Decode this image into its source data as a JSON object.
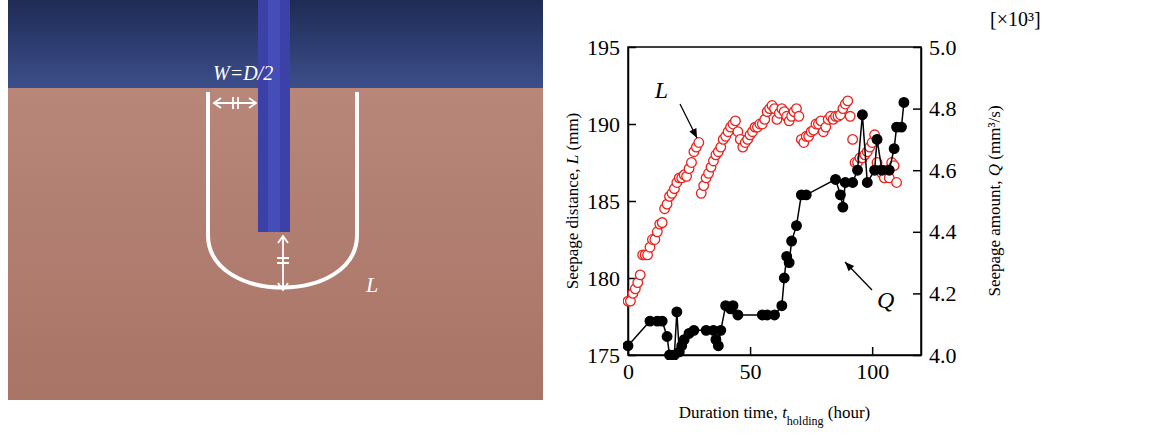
{
  "chart_data": {
    "type": "line",
    "xlabel_parts": [
      "Duration time, ",
      "t",
      "holding",
      " (hour)"
    ],
    "ylabel_parts": [
      "Seepage distance, ",
      "L",
      " (mm)"
    ],
    "y2label_parts": [
      "Seepage amount, ",
      "Q",
      " (mm³/s)"
    ],
    "y2_multiplier": "[×10³]",
    "xlim": [
      0,
      120
    ],
    "xticks": [
      0,
      50,
      100
    ],
    "ylim": [
      175,
      195
    ],
    "yticks": [
      175,
      180,
      185,
      190,
      195
    ],
    "y2lim": [
      4,
      5
    ],
    "y2ticks": [
      {
        "value": 4,
        "label": "4.0"
      },
      4.2,
      4.4,
      4.6,
      4.8,
      {
        "value": 5,
        "label": "5.0"
      }
    ],
    "series": [
      {
        "name": "L",
        "type": "scatter",
        "marker": "circle-open",
        "line_style": "none",
        "color": "#e8231e",
        "x": [
          0,
          1,
          2,
          3,
          4,
          5,
          6,
          7,
          8,
          9,
          10,
          11,
          12,
          13,
          14,
          15,
          16,
          17,
          18,
          19,
          20,
          21,
          22,
          23,
          24,
          25,
          26,
          27,
          28,
          29,
          30,
          31,
          32,
          33,
          34,
          35,
          36,
          37,
          38,
          39,
          40,
          41,
          42,
          43,
          44,
          45,
          46,
          47,
          48,
          49,
          50,
          51,
          52,
          53,
          54,
          55,
          56,
          57,
          58,
          59,
          60,
          61,
          62,
          63,
          64,
          65,
          66,
          67,
          68,
          69,
          70,
          71,
          72,
          73,
          74,
          75,
          76,
          77,
          78,
          79,
          80,
          81,
          82,
          83,
          84,
          85,
          86,
          87,
          88,
          89,
          90,
          91,
          92,
          93,
          94,
          95,
          96,
          97,
          98,
          99,
          100,
          101,
          102,
          103,
          104,
          105,
          106,
          107,
          108,
          109,
          110
        ],
        "values": [
          178.5,
          178.5,
          179,
          179.3,
          179.7,
          180.2,
          181.5,
          181.5,
          181.5,
          182,
          182.5,
          182.5,
          183,
          183.5,
          183.6,
          184.5,
          184.8,
          185.3,
          185.5,
          185.8,
          186.2,
          186.5,
          186.5,
          186.7,
          186.6,
          187.1,
          187.5,
          188.2,
          188.5,
          188.8,
          185.5,
          186,
          186.5,
          186.8,
          187.2,
          187.6,
          188,
          188.2,
          188.5,
          189,
          189.2,
          189.5,
          189.8,
          190,
          190.2,
          189.5,
          189,
          188.5,
          188.8,
          189,
          189.3,
          189.5,
          189.8,
          189.8,
          190,
          190,
          190.3,
          190.8,
          191,
          191.2,
          191,
          190.3,
          190.7,
          191,
          190.8,
          190.5,
          190.2,
          190.5,
          190.8,
          191,
          190.5,
          189,
          188.8,
          189.2,
          189.2,
          189.5,
          189.6,
          190,
          190,
          190.2,
          189.5,
          189.8,
          190.3,
          190.5,
          190.3,
          190.5,
          190.5,
          190.6,
          191,
          191.3,
          191.5,
          190.5,
          189,
          187.5,
          187.5,
          187.8,
          187.8,
          188,
          188.2,
          188.5,
          188.8,
          189.3,
          187.5,
          187,
          186.8,
          186.5,
          187,
          186.5,
          187.5,
          187.3,
          186.2
        ]
      },
      {
        "name": "Q",
        "type": "line",
        "marker": "circle",
        "line_style": "solid",
        "color": "#000000",
        "axis": "y2",
        "x": [
          0,
          9,
          12,
          14,
          16,
          17,
          19,
          20,
          21,
          22,
          23,
          25,
          27,
          32,
          35,
          36,
          37,
          38,
          40,
          42,
          43,
          45,
          55,
          57,
          60,
          63,
          64,
          65,
          66,
          67,
          69,
          71,
          73,
          85,
          87,
          88,
          89,
          92,
          94,
          96,
          98,
          101,
          102,
          104,
          107,
          109,
          110,
          112,
          113
        ],
        "values": [
          4.03,
          4.11,
          4.11,
          4.11,
          4.06,
          4.0,
          4.0,
          4.14,
          4.01,
          4.03,
          4.05,
          4.07,
          4.08,
          4.08,
          4.08,
          4.05,
          4.03,
          4.08,
          4.16,
          4.15,
          4.16,
          4.13,
          4.13,
          4.13,
          4.13,
          4.16,
          4.25,
          4.32,
          4.3,
          4.37,
          4.42,
          4.52,
          4.52,
          4.57,
          4.52,
          4.48,
          4.56,
          4.56,
          4.6,
          4.78,
          4.56,
          4.6,
          4.7,
          4.6,
          4.6,
          4.67,
          4.74,
          4.74,
          4.82
        ]
      }
    ]
  },
  "diagram": {
    "width_label": "W=D/2",
    "length_label": "L"
  }
}
